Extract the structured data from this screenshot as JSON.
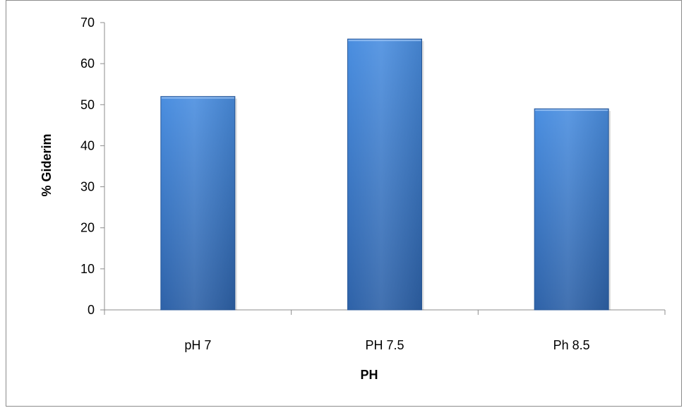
{
  "chart_data": {
    "type": "bar",
    "categories": [
      "pH 7",
      "PH 7.5",
      "Ph 8.5"
    ],
    "values": [
      52,
      66,
      49
    ],
    "title": "",
    "xlabel": "PH",
    "ylabel": "% Giderim",
    "ylim": [
      0,
      70
    ],
    "yticks": [
      0,
      10,
      20,
      30,
      40,
      50,
      60,
      70
    ],
    "grid": false,
    "legend": "none",
    "bar_color_top": "#4a8ee0",
    "bar_color_bottom": "#2e62a8"
  }
}
